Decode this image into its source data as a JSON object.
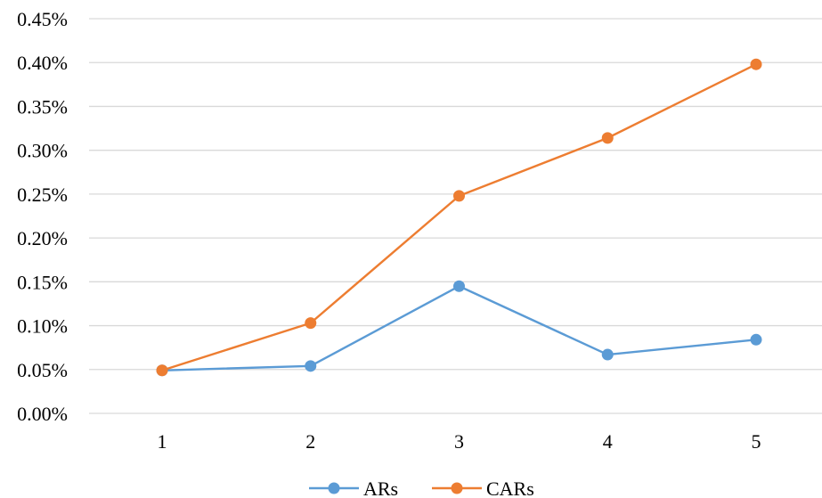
{
  "chart_data": {
    "type": "line",
    "title": "",
    "xlabel": "",
    "ylabel": "",
    "categories": [
      "1",
      "2",
      "3",
      "4",
      "5"
    ],
    "series": [
      {
        "name": "ARs",
        "color": "#5B9BD5",
        "values": [
          0.049,
          0.054,
          0.145,
          0.067,
          0.084
        ]
      },
      {
        "name": "CARs",
        "color": "#ED7D31",
        "values": [
          0.049,
          0.103,
          0.248,
          0.314,
          0.398
        ]
      }
    ],
    "ylim": [
      0,
      0.45
    ],
    "yticks": [
      0,
      0.05,
      0.1,
      0.15,
      0.2,
      0.25,
      0.3,
      0.35,
      0.4,
      0.45
    ],
    "ytick_labels": [
      "0.00%",
      "0.05%",
      "0.10%",
      "0.15%",
      "0.20%",
      "0.25%",
      "0.30%",
      "0.35%",
      "0.40%",
      "0.45%"
    ],
    "grid": true,
    "gridline_color": "#D9D9D9",
    "legend_position": "bottom-center"
  }
}
